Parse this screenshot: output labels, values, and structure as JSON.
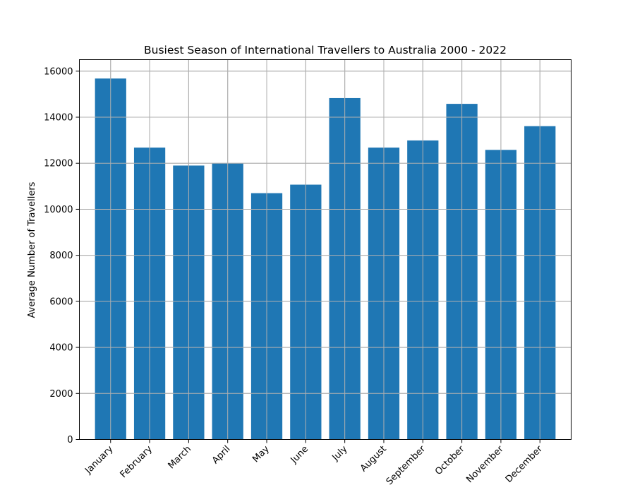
{
  "chart_data": {
    "type": "bar",
    "title": "Busiest Season of International Travellers to Australia 2000 - 2022",
    "xlabel": "",
    "ylabel": "Average Number of Travellers",
    "categories": [
      "January",
      "February",
      "March",
      "April",
      "May",
      "June",
      "July",
      "August",
      "September",
      "October",
      "November",
      "December"
    ],
    "values": [
      15680,
      12680,
      11900,
      11990,
      10700,
      11070,
      14830,
      12680,
      12990,
      14580,
      12580,
      13610
    ],
    "ylim": [
      0,
      16500
    ],
    "yticks": [
      0,
      2000,
      4000,
      6000,
      8000,
      10000,
      12000,
      14000,
      16000
    ],
    "grid": true,
    "bar_color": "#1f77b4",
    "grid_color": "#b0b0b0"
  }
}
